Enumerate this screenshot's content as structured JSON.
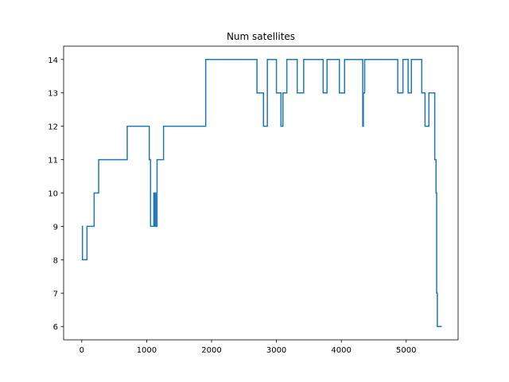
{
  "chart_data": {
    "type": "line",
    "title": "Num satellites",
    "xlabel": "",
    "ylabel": "",
    "xlim": [
      -280,
      5800
    ],
    "ylim": [
      5.6,
      14.4
    ],
    "x_ticks": [
      0,
      1000,
      2000,
      3000,
      4000,
      5000
    ],
    "y_ticks": [
      6,
      7,
      8,
      9,
      10,
      11,
      12,
      13,
      14
    ],
    "grid": false,
    "legend": "none",
    "series": [
      {
        "color": "#1f77b4",
        "drawstyle": "steps-post",
        "x": [
          0,
          10,
          80,
          190,
          260,
          700,
          1040,
          1060,
          1110,
          1120,
          1130,
          1140,
          1160,
          1260,
          1910,
          2700,
          2800,
          2860,
          3000,
          3070,
          3100,
          3140,
          3160,
          3320,
          3420,
          3720,
          3780,
          3970,
          4050,
          4330,
          4340,
          4360,
          4870,
          4950,
          5030,
          5080,
          5240,
          5290,
          5350,
          5440,
          5460,
          5470,
          5480,
          5490,
          5510,
          5550
        ],
        "y": [
          9,
          8,
          9,
          10,
          11,
          12,
          11,
          9,
          10,
          9,
          10,
          9,
          11,
          12,
          14,
          13,
          12,
          14,
          13,
          12,
          13,
          13,
          14,
          13,
          14,
          13,
          14,
          13,
          14,
          12,
          13,
          14,
          13,
          14,
          13,
          14,
          13,
          12,
          13,
          11,
          10,
          7,
          6,
          6,
          6,
          6
        ]
      }
    ]
  }
}
